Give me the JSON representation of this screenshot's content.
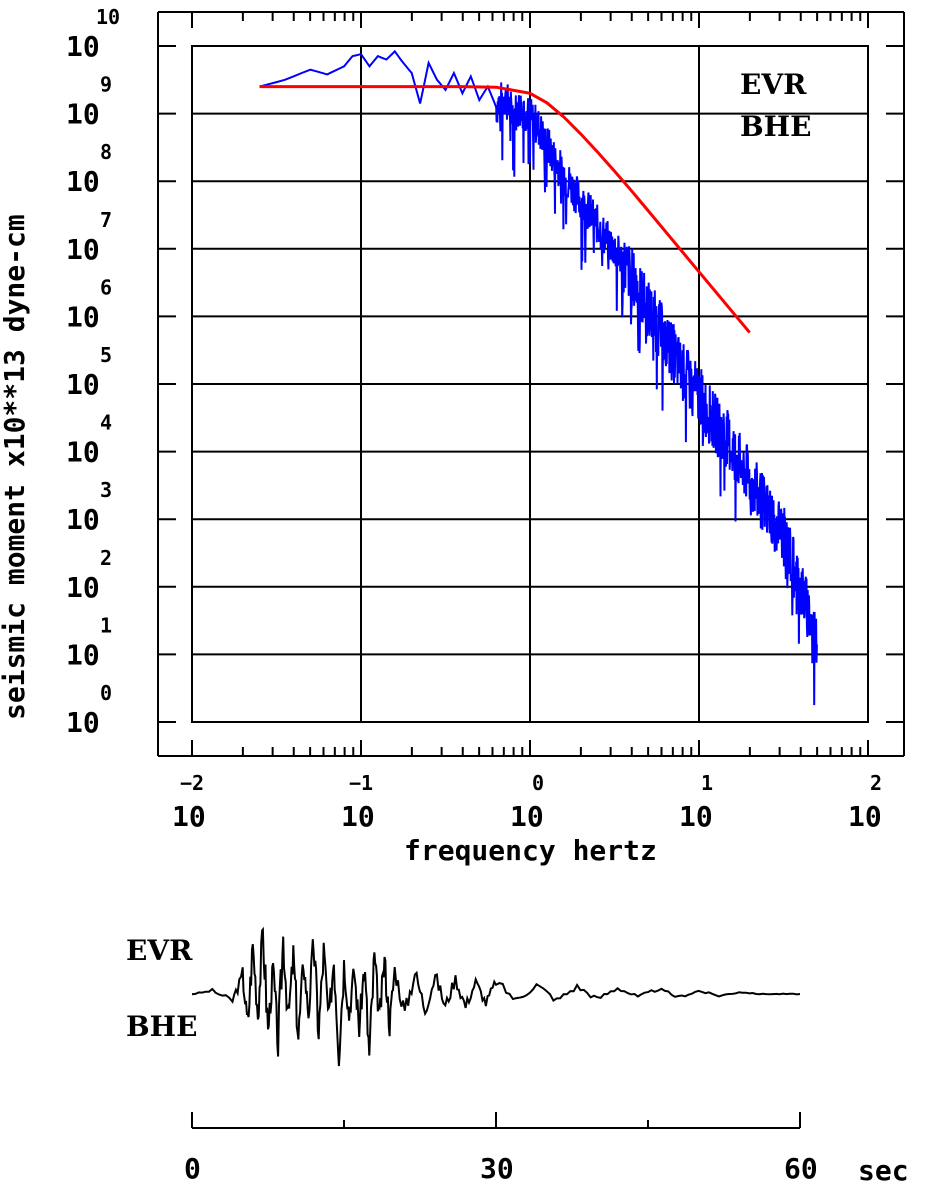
{
  "chart_data": [
    {
      "type": "line",
      "scale": "log-log",
      "xlabel": "frequency  hertz",
      "ylabel": "seismic moment x10**13 dyne-cm",
      "x_tick_base": "10",
      "y_tick_base": "10",
      "xlim_log10": [
        -2,
        2
      ],
      "ylim_log10": [
        0,
        10
      ],
      "x_tick_exponents": [
        "-2",
        "-1",
        "0",
        "1",
        "2"
      ],
      "y_tick_exponents": [
        "0",
        "1",
        "2",
        "3",
        "4",
        "5",
        "6",
        "7",
        "8",
        "9",
        "10"
      ],
      "grid": true,
      "annotations": [
        "EVR",
        "BHE"
      ],
      "series": [
        {
          "role": "observed spectrum",
          "color": "#0000ff",
          "log10_x": [
            -1.6,
            -1.45,
            -1.3,
            -1.2,
            -1.1,
            -1.05,
            -1.0,
            -0.95,
            -0.9,
            -0.85,
            -0.8,
            -0.75,
            -0.7,
            -0.65,
            -0.6,
            -0.55,
            -0.5,
            -0.45,
            -0.4,
            -0.35,
            -0.3,
            -0.25,
            -0.2,
            -0.15,
            -0.1,
            -0.05,
            0.0,
            0.05,
            0.1,
            0.15,
            0.2,
            0.25,
            0.3,
            0.35,
            0.4,
            0.45,
            0.5,
            0.55,
            0.6,
            0.65,
            0.7,
            0.75,
            0.8,
            0.85,
            0.9,
            0.95,
            1.0,
            1.05,
            1.1,
            1.15,
            1.2,
            1.25,
            1.3,
            1.35,
            1.4,
            1.45,
            1.5,
            1.55,
            1.6,
            1.65,
            1.7
          ],
          "log10_y": [
            9.4,
            9.5,
            9.65,
            9.58,
            9.7,
            9.85,
            9.88,
            9.7,
            9.85,
            9.8,
            9.92,
            9.75,
            9.6,
            9.15,
            9.75,
            9.5,
            9.35,
            9.6,
            9.3,
            9.55,
            9.2,
            9.4,
            9.1,
            9.25,
            9.0,
            9.1,
            8.95,
            8.8,
            8.55,
            8.3,
            8.1,
            7.9,
            7.7,
            7.55,
            7.35,
            7.15,
            7.0,
            6.8,
            6.6,
            6.35,
            6.1,
            5.9,
            5.65,
            5.45,
            5.2,
            5.0,
            4.85,
            4.6,
            4.4,
            4.25,
            4.05,
            3.8,
            3.6,
            3.35,
            3.15,
            3.0,
            2.75,
            2.4,
            2.0,
            1.6,
            1.15
          ]
        },
        {
          "role": "model fit",
          "color": "#ff0000",
          "log10_x": [
            -1.6,
            -1.2,
            -0.8,
            -0.4,
            -0.2,
            0.0,
            0.1,
            0.2,
            0.3,
            0.4,
            0.5,
            0.6,
            0.7,
            0.8,
            0.9,
            1.0,
            1.1,
            1.2,
            1.3
          ],
          "log10_y": [
            9.4,
            9.4,
            9.4,
            9.4,
            9.39,
            9.3,
            9.16,
            8.95,
            8.7,
            8.43,
            8.15,
            7.86,
            7.56,
            7.26,
            6.96,
            6.66,
            6.36,
            6.06,
            5.76
          ]
        }
      ]
    },
    {
      "type": "line",
      "xlabel": "sec",
      "x_ticks": [
        "0",
        "30",
        "60"
      ],
      "xlim": [
        0,
        60
      ],
      "station_labels": [
        "EVR",
        "BHE"
      ],
      "series": [
        {
          "role": "seismogram trace",
          "color": "#000000",
          "t": [
            0,
            2,
            4,
            5,
            5.5,
            6,
            6.5,
            7,
            7.5,
            8,
            8.5,
            9,
            9.5,
            10,
            10.5,
            11,
            11.5,
            12,
            12.5,
            13,
            13.5,
            14,
            14.5,
            15,
            15.5,
            16,
            16.5,
            17,
            17.5,
            18,
            18.5,
            19,
            19.5,
            20,
            21,
            22,
            23,
            24,
            25,
            26,
            27,
            28,
            29,
            30,
            32,
            34,
            36,
            38,
            40,
            42,
            44,
            46,
            48,
            50,
            52,
            54,
            56,
            58,
            60
          ],
          "amp": [
            0,
            0.05,
            -0.1,
            0.3,
            -0.5,
            0.8,
            -0.3,
            1.0,
            -0.6,
            0.4,
            -0.8,
            0.9,
            -0.4,
            0.6,
            -0.7,
            0.5,
            -0.3,
            0.85,
            -0.6,
            0.7,
            -0.45,
            0.6,
            -0.9,
            0.5,
            -0.35,
            0.4,
            -0.55,
            0.45,
            -1.0,
            0.6,
            -0.4,
            0.55,
            -0.5,
            0.4,
            -0.3,
            0.35,
            -0.25,
            0.3,
            -0.2,
            0.25,
            -0.2,
            0.2,
            -0.15,
            0.2,
            -0.1,
            0.15,
            -0.1,
            0.12,
            -0.08,
            0.1,
            -0.05,
            0.08,
            -0.05,
            0.05,
            -0.03,
            0.03,
            0,
            0,
            0
          ]
        }
      ]
    }
  ]
}
